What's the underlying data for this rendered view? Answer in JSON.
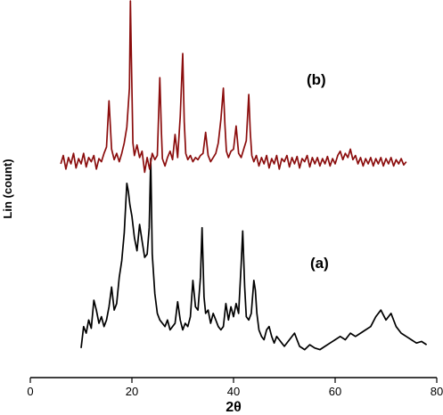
{
  "chart_data": {
    "type": "line",
    "xlabel": "2θ",
    "ylabel": "Lin (count)",
    "xlim": [
      0,
      80
    ],
    "xticks": [
      0,
      20,
      40,
      60,
      80
    ],
    "yticks_shown": false,
    "grid": false,
    "legend": "none",
    "annotations": [
      "(b)",
      "(a)"
    ],
    "series": [
      {
        "label": "(a)",
        "color": "#000000",
        "x_range": [
          10,
          78
        ],
        "points": [
          [
            10,
            0.05
          ],
          [
            10.5,
            0.18
          ],
          [
            11,
            0.14
          ],
          [
            11.5,
            0.22
          ],
          [
            12,
            0.17
          ],
          [
            12.5,
            0.34
          ],
          [
            13,
            0.28
          ],
          [
            13.5,
            0.2
          ],
          [
            14,
            0.24
          ],
          [
            14.5,
            0.18
          ],
          [
            15,
            0.22
          ],
          [
            15.5,
            0.3
          ],
          [
            16,
            0.42
          ],
          [
            16.5,
            0.28
          ],
          [
            17,
            0.32
          ],
          [
            17.5,
            0.48
          ],
          [
            18,
            0.58
          ],
          [
            18.5,
            0.75
          ],
          [
            19,
            1.05
          ],
          [
            19.3,
            1.0
          ],
          [
            19.6,
            0.92
          ],
          [
            20,
            0.85
          ],
          [
            20.5,
            0.72
          ],
          [
            21,
            0.64
          ],
          [
            21.5,
            0.8
          ],
          [
            22,
            0.7
          ],
          [
            22.5,
            0.6
          ],
          [
            23,
            0.62
          ],
          [
            23.4,
            0.78
          ],
          [
            23.7,
            1.2
          ],
          [
            24,
            0.62
          ],
          [
            24.5,
            0.38
          ],
          [
            25,
            0.26
          ],
          [
            25.5,
            0.22
          ],
          [
            26,
            0.2
          ],
          [
            26.5,
            0.18
          ],
          [
            27,
            0.22
          ],
          [
            27.5,
            0.16
          ],
          [
            28,
            0.18
          ],
          [
            28.5,
            0.2
          ],
          [
            29,
            0.33
          ],
          [
            29.5,
            0.22
          ],
          [
            30,
            0.16
          ],
          [
            30.5,
            0.2
          ],
          [
            31,
            0.18
          ],
          [
            31.5,
            0.24
          ],
          [
            32,
            0.46
          ],
          [
            32.5,
            0.3
          ],
          [
            33,
            0.28
          ],
          [
            33.5,
            0.48
          ],
          [
            33.8,
            0.78
          ],
          [
            34.2,
            0.36
          ],
          [
            34.5,
            0.26
          ],
          [
            35,
            0.28
          ],
          [
            35.5,
            0.2
          ],
          [
            36,
            0.26
          ],
          [
            36.5,
            0.22
          ],
          [
            37,
            0.18
          ],
          [
            37.5,
            0.16
          ],
          [
            38,
            0.18
          ],
          [
            38.5,
            0.32
          ],
          [
            39,
            0.22
          ],
          [
            39.5,
            0.3
          ],
          [
            40,
            0.24
          ],
          [
            40.5,
            0.32
          ],
          [
            41,
            0.26
          ],
          [
            41.5,
            0.56
          ],
          [
            41.8,
            0.76
          ],
          [
            42.2,
            0.42
          ],
          [
            42.5,
            0.24
          ],
          [
            43,
            0.22
          ],
          [
            43.5,
            0.26
          ],
          [
            44,
            0.46
          ],
          [
            44.3,
            0.4
          ],
          [
            44.6,
            0.26
          ],
          [
            45,
            0.16
          ],
          [
            45.5,
            0.12
          ],
          [
            46,
            0.1
          ],
          [
            46.5,
            0.16
          ],
          [
            47,
            0.18
          ],
          [
            47.5,
            0.12
          ],
          [
            48,
            0.08
          ],
          [
            48.5,
            0.12
          ],
          [
            49,
            0.1
          ],
          [
            49.5,
            0.08
          ],
          [
            50,
            0.06
          ],
          [
            51,
            0.1
          ],
          [
            52,
            0.14
          ],
          [
            53,
            0.06
          ],
          [
            54,
            0.04
          ],
          [
            55,
            0.07
          ],
          [
            56,
            0.05
          ],
          [
            57,
            0.04
          ],
          [
            58,
            0.06
          ],
          [
            59,
            0.08
          ],
          [
            60,
            0.1
          ],
          [
            61,
            0.12
          ],
          [
            62,
            0.1
          ],
          [
            63,
            0.14
          ],
          [
            64,
            0.12
          ],
          [
            65,
            0.14
          ],
          [
            66,
            0.16
          ],
          [
            67,
            0.18
          ],
          [
            68,
            0.24
          ],
          [
            69,
            0.28
          ],
          [
            70,
            0.22
          ],
          [
            71,
            0.26
          ],
          [
            72,
            0.18
          ],
          [
            73,
            0.14
          ],
          [
            74,
            0.12
          ],
          [
            75,
            0.1
          ],
          [
            76,
            0.08
          ],
          [
            77,
            0.09
          ],
          [
            78,
            0.07
          ]
        ]
      },
      {
        "label": "(b)",
        "color": "#8b0d0d",
        "x_range": [
          6,
          74
        ],
        "points": [
          [
            6,
            0.0
          ],
          [
            6.5,
            0.08
          ],
          [
            7,
            -0.05
          ],
          [
            7.5,
            0.06
          ],
          [
            8,
            0.0
          ],
          [
            8.5,
            0.1
          ],
          [
            9,
            -0.04
          ],
          [
            9.5,
            0.05
          ],
          [
            10,
            0.0
          ],
          [
            10.5,
            0.1
          ],
          [
            11,
            -0.03
          ],
          [
            11.5,
            0.06
          ],
          [
            12,
            0.02
          ],
          [
            12.5,
            0.08
          ],
          [
            13,
            -0.05
          ],
          [
            13.5,
            0.05
          ],
          [
            14,
            0.02
          ],
          [
            14.5,
            0.1
          ],
          [
            15,
            0.16
          ],
          [
            15.5,
            0.6
          ],
          [
            16,
            0.14
          ],
          [
            16.5,
            0.04
          ],
          [
            17,
            0.1
          ],
          [
            17.5,
            0.02
          ],
          [
            18,
            0.1
          ],
          [
            18.5,
            0.2
          ],
          [
            19,
            0.35
          ],
          [
            19.5,
            0.72
          ],
          [
            19.7,
            1.55
          ],
          [
            19.9,
            1.0
          ],
          [
            20.2,
            0.2
          ],
          [
            20.5,
            0.08
          ],
          [
            21,
            0.18
          ],
          [
            21.5,
            0.06
          ],
          [
            22,
            0.12
          ],
          [
            22.5,
            -0.08
          ],
          [
            23,
            0.06
          ],
          [
            23.5,
            -0.05
          ],
          [
            24,
            0.1
          ],
          [
            24.5,
            0.04
          ],
          [
            25,
            0.08
          ],
          [
            25.5,
            0.82
          ],
          [
            25.8,
            0.3
          ],
          [
            26,
            0.05
          ],
          [
            26.5,
            -0.02
          ],
          [
            27,
            0.06
          ],
          [
            27.5,
            0.12
          ],
          [
            28,
            0.04
          ],
          [
            28.5,
            0.28
          ],
          [
            29,
            0.06
          ],
          [
            29.5,
            0.45
          ],
          [
            30,
            1.05
          ],
          [
            30.3,
            0.4
          ],
          [
            30.6,
            0.1
          ],
          [
            31,
            0.04
          ],
          [
            31.5,
            0.08
          ],
          [
            32,
            0.02
          ],
          [
            32.5,
            0.06
          ],
          [
            33,
            0.04
          ],
          [
            33.5,
            0.08
          ],
          [
            34,
            0.1
          ],
          [
            34.5,
            0.3
          ],
          [
            35,
            0.08
          ],
          [
            35.5,
            0.02
          ],
          [
            36,
            0.06
          ],
          [
            36.5,
            0.1
          ],
          [
            37,
            0.2
          ],
          [
            37.5,
            0.42
          ],
          [
            38,
            0.72
          ],
          [
            38.3,
            0.38
          ],
          [
            38.6,
            0.12
          ],
          [
            39,
            0.06
          ],
          [
            39.5,
            0.12
          ],
          [
            40,
            0.14
          ],
          [
            40.5,
            0.36
          ],
          [
            41,
            0.1
          ],
          [
            41.5,
            0.06
          ],
          [
            42,
            0.14
          ],
          [
            42.5,
            0.22
          ],
          [
            43,
            0.66
          ],
          [
            43.3,
            0.3
          ],
          [
            43.6,
            0.08
          ],
          [
            44,
            0.02
          ],
          [
            44.5,
            0.08
          ],
          [
            45,
            -0.02
          ],
          [
            45.5,
            0.06
          ],
          [
            46,
            0.0
          ],
          [
            46.5,
            0.08
          ],
          [
            47,
            -0.04
          ],
          [
            47.5,
            0.05
          ],
          [
            48,
            0.0
          ],
          [
            48.5,
            0.08
          ],
          [
            49,
            -0.05
          ],
          [
            49.5,
            0.05
          ],
          [
            50,
            0.02
          ],
          [
            50.5,
            0.08
          ],
          [
            51,
            -0.03
          ],
          [
            51.5,
            0.06
          ],
          [
            52,
            0.0
          ],
          [
            52.5,
            0.07
          ],
          [
            53,
            -0.04
          ],
          [
            53.5,
            0.05
          ],
          [
            54,
            0.02
          ],
          [
            54.5,
            0.08
          ],
          [
            55,
            -0.03
          ],
          [
            55.5,
            0.06
          ],
          [
            56,
            0.0
          ],
          [
            56.5,
            0.06
          ],
          [
            57,
            -0.02
          ],
          [
            57.5,
            0.05
          ],
          [
            58,
            0.0
          ],
          [
            58.5,
            0.07
          ],
          [
            59,
            -0.02
          ],
          [
            59.5,
            0.05
          ],
          [
            60,
            0.0
          ],
          [
            60.5,
            0.08
          ],
          [
            61,
            0.12
          ],
          [
            61.5,
            0.04
          ],
          [
            62,
            0.1
          ],
          [
            62.5,
            0.06
          ],
          [
            63,
            0.14
          ],
          [
            63.5,
            0.04
          ],
          [
            64,
            0.08
          ],
          [
            64.5,
            0.0
          ],
          [
            65,
            0.06
          ],
          [
            65.5,
            -0.02
          ],
          [
            66,
            0.05
          ],
          [
            66.5,
            0.0
          ],
          [
            67,
            0.06
          ],
          [
            67.5,
            -0.02
          ],
          [
            68,
            0.05
          ],
          [
            68.5,
            0.0
          ],
          [
            69,
            0.06
          ],
          [
            69.5,
            -0.02
          ],
          [
            70,
            0.05
          ],
          [
            70.5,
            0.0
          ],
          [
            71,
            0.06
          ],
          [
            71.5,
            -0.02
          ],
          [
            72,
            0.04
          ],
          [
            72.5,
            0.0
          ],
          [
            73,
            0.05
          ],
          [
            73.5,
            -0.01
          ],
          [
            74,
            0.02
          ]
        ]
      }
    ]
  }
}
